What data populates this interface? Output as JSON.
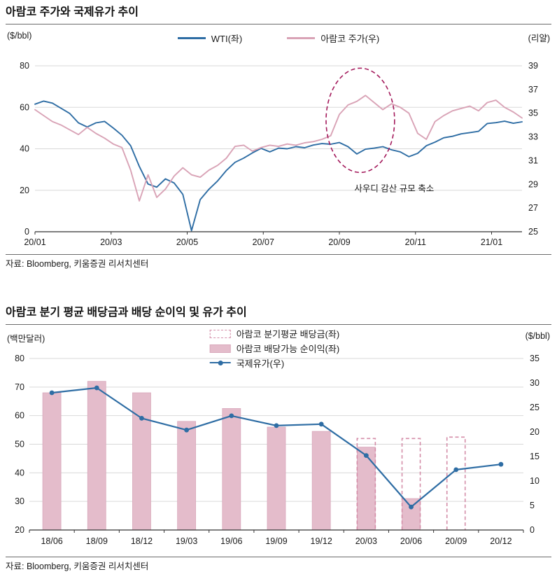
{
  "colors": {
    "wti_blue": "#2e6da4",
    "aramco_pink": "#d9a3b6",
    "bar_fill": "#e4bccb",
    "bar_border": "#d9a9bc",
    "bar_dash": "#d48da8",
    "oil_line_blue": "#2e6da4",
    "annotation": "#a3195b",
    "grid": "#d9d9d9",
    "axis": "#333333",
    "text": "#1a1a1a"
  },
  "chart1": {
    "title": "아람코 주가와 국제유가 추이",
    "left_unit": "($/bbl)",
    "right_unit": "(리얄)",
    "legend": [
      {
        "label": "WTI(좌)"
      },
      {
        "label": "아람코 주가(우)"
      }
    ],
    "source": "자료: Bloomberg, 키움증권 리서치센터"
  },
  "chart2": {
    "title": "아람코 분기 평균 배당금과 배당 순이익 및 유가 추이",
    "left_unit": "(백만달러)",
    "right_unit": "($/bbl)",
    "legend": [
      {
        "label": "아람코 분기평균 배당금(좌)"
      },
      {
        "label": "아람코 배당가능 순이익(좌)"
      },
      {
        "label": "국제유가(우)"
      }
    ],
    "source": "자료: Bloomberg, 키움증권 리서치센터"
  },
  "chart_data": [
    {
      "id": "aramco-stock-vs-wti",
      "type": "line",
      "title": "아람코 주가와 국제유가 추이",
      "left_axis": {
        "unit": "($/bbl)",
        "min": 0,
        "max": 80,
        "ticks": [
          0,
          20,
          40,
          60,
          80
        ]
      },
      "right_axis": {
        "unit": "(리얄)",
        "min": 25,
        "max": 39,
        "ticks": [
          25,
          27,
          29,
          31,
          33,
          35,
          37,
          39
        ]
      },
      "x_axis": {
        "total_months": 12.8,
        "ticks": [
          {
            "m": 0,
            "label": "20/01"
          },
          {
            "m": 2,
            "label": "20/03"
          },
          {
            "m": 4,
            "label": "20/05"
          },
          {
            "m": 6,
            "label": "20/07"
          },
          {
            "m": 8,
            "label": "20/09"
          },
          {
            "m": 10,
            "label": "20/11"
          },
          {
            "m": 12,
            "label": "21/01"
          }
        ]
      },
      "grid": true,
      "legend_position": "top",
      "series": [
        {
          "name": "WTI(좌)",
          "axis": "left",
          "values": [
            61.5,
            63,
            62,
            59.5,
            57,
            52.5,
            50.5,
            52.5,
            53.2,
            50,
            46.5,
            41.5,
            31.5,
            23,
            21.5,
            25.5,
            23.5,
            18,
            0.5,
            15.5,
            20.5,
            24.5,
            29.5,
            33.5,
            35.5,
            38,
            40.2,
            38.5,
            40.3,
            40,
            41,
            40.5,
            41.8,
            42.5,
            42.2,
            43,
            41,
            37.5,
            39.8,
            40.3,
            41,
            39.5,
            38.5,
            36.2,
            37.8,
            41.5,
            43.2,
            45.3,
            46,
            47.2,
            47.8,
            48.4,
            52.2,
            52.6,
            53.3,
            52.3,
            53
          ]
        },
        {
          "name": "아람코 주가(우)",
          "axis": "right",
          "values": [
            35.3,
            34.8,
            34.3,
            34,
            33.6,
            33.2,
            33.8,
            33.3,
            32.9,
            32.4,
            32.1,
            30.2,
            27.6,
            29.8,
            27.9,
            28.6,
            29.7,
            30.4,
            29.8,
            29.6,
            30.2,
            30.6,
            31.2,
            32.2,
            32.3,
            31.8,
            32.1,
            32.3,
            32.2,
            32.4,
            32.3,
            32.5,
            32.6,
            32.8,
            33.1,
            34.9,
            35.7,
            36,
            36.5,
            35.9,
            35.3,
            35.8,
            35.5,
            35,
            33.3,
            32.8,
            34.3,
            34.8,
            35.2,
            35.4,
            35.6,
            35.2,
            35.9,
            36.1,
            35.5,
            35.1,
            34.6
          ]
        }
      ],
      "annotation": {
        "text": "사우디 감산 규모 축소",
        "ellipse": {
          "cx_month": 8.55,
          "cy_val": 34.4,
          "rx_month": 0.9,
          "ry_val": 4.4
        },
        "label_month": 9.44,
        "label_val": 28.4
      }
    },
    {
      "id": "aramco-dividend-income-oil",
      "type": "bar+line",
      "title": "아람코 분기 평균 배당금과 배당 순이익 및 유가 추이",
      "categories": [
        "18/06",
        "18/09",
        "18/12",
        "19/03",
        "19/06",
        "19/09",
        "19/12",
        "20/03",
        "20/06",
        "20/09",
        "20/12"
      ],
      "left_axis": {
        "unit": "(백만달러)",
        "min": 20,
        "max": 80,
        "ticks": [
          20,
          30,
          40,
          50,
          60,
          70,
          80
        ]
      },
      "right_axis": {
        "unit": "($/bbl)",
        "min": 0,
        "max": 35,
        "ticks": [
          0,
          5,
          10,
          15,
          20,
          25,
          30,
          35
        ]
      },
      "grid": true,
      "legend_position": "top",
      "bars_dashed": {
        "name": "아람코 분기평균 배당금(좌)",
        "axis": "left",
        "values": [
          null,
          null,
          null,
          null,
          null,
          null,
          null,
          52,
          52,
          52.5,
          null
        ]
      },
      "bars_solid": {
        "name": "아람코 배당가능 순이익(좌)",
        "axis": "left",
        "values": [
          68,
          72,
          68,
          58,
          62.5,
          56,
          54.5,
          49,
          31,
          null,
          null
        ]
      },
      "line": {
        "name": "국제유가(우)",
        "axis": "right",
        "values": [
          28,
          29,
          22.8,
          20.4,
          23.3,
          21.3,
          21.6,
          15.2,
          4.7,
          12.3,
          13.4
        ]
      }
    }
  ]
}
